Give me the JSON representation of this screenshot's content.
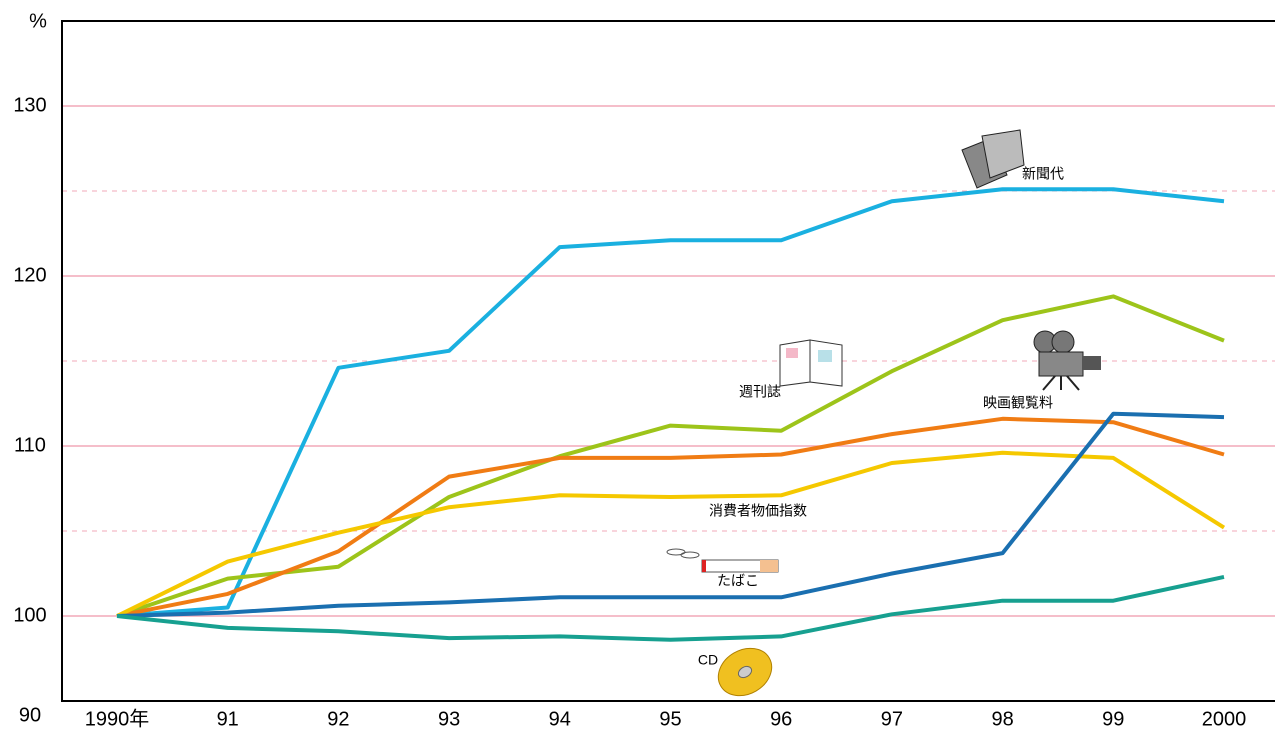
{
  "chart_data": {
    "type": "line",
    "unit_label": "%",
    "axis_break_label": "90",
    "categories": [
      "1990年",
      "91",
      "92",
      "93",
      "94",
      "95",
      "96",
      "97",
      "98",
      "99",
      "2000"
    ],
    "ylim": [
      95,
      135
    ],
    "yticks": [
      100,
      110,
      120,
      130
    ],
    "minor_gridlines": [
      105,
      115,
      125
    ],
    "grid": true,
    "series": [
      {
        "name": "新聞代",
        "color": "#1ab0e0",
        "values": [
          100,
          100.5,
          114.6,
          115.6,
          121.7,
          122.1,
          122.1,
          124.4,
          125.1,
          125.1,
          124.4
        ]
      },
      {
        "name": "週刊誌",
        "color": "#9dc41a",
        "values": [
          100,
          102.2,
          102.9,
          107.0,
          109.4,
          111.2,
          110.9,
          114.4,
          117.4,
          118.8,
          116.2
        ]
      },
      {
        "name": "映画観覧料",
        "color": "#f07c14",
        "values": [
          100,
          101.3,
          103.8,
          108.2,
          109.3,
          109.3,
          109.5,
          110.7,
          111.6,
          111.4,
          109.5
        ]
      },
      {
        "name": "消費者物価指数",
        "color": "#f5c800",
        "values": [
          100,
          103.2,
          104.9,
          106.4,
          107.1,
          107.0,
          107.1,
          109.0,
          109.6,
          109.3,
          105.2
        ]
      },
      {
        "name": "たばこ",
        "color": "#1a6fb0",
        "values": [
          100,
          100.2,
          100.6,
          100.8,
          101.1,
          101.1,
          101.1,
          102.5,
          103.7,
          111.9,
          111.7
        ]
      },
      {
        "name": "CD",
        "color": "#17a090",
        "values": [
          100,
          99.3,
          99.1,
          98.7,
          98.8,
          98.6,
          98.8,
          100.1,
          100.9,
          100.9,
          102.3
        ]
      }
    ]
  }
}
